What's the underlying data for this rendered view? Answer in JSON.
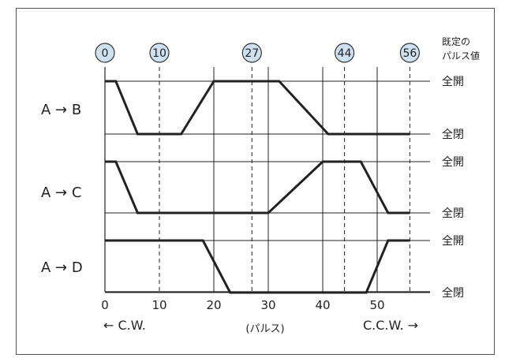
{
  "header_label": [
    "既定の",
    "パルス値"
  ],
  "markers": [
    {
      "value": 0,
      "label": "0"
    },
    {
      "value": 10,
      "label": "10"
    },
    {
      "value": 27,
      "label": "27"
    },
    {
      "value": 44,
      "label": "44"
    },
    {
      "value": 56,
      "label": "56"
    }
  ],
  "x_axis": {
    "ticks": [
      0,
      10,
      20,
      30,
      40,
      50
    ],
    "tick_labels": [
      "0",
      "10",
      "20",
      "30",
      "40",
      "50"
    ],
    "range": [
      0,
      56
    ],
    "unit_label": "(パルス)",
    "left_direction": "← C.W.",
    "right_direction": "C.C.W. →"
  },
  "solid_gridlines_x": [
    20,
    30,
    40,
    50
  ],
  "state_labels": {
    "open": "全開",
    "closed": "全閉"
  },
  "channels": [
    {
      "label": "A → B",
      "points": [
        [
          0,
          "open"
        ],
        [
          2,
          "open"
        ],
        [
          6,
          "closed"
        ],
        [
          14,
          "closed"
        ],
        [
          20,
          "open"
        ],
        [
          32,
          "open"
        ],
        [
          41,
          "closed"
        ],
        [
          56,
          "closed"
        ]
      ]
    },
    {
      "label": "A → C",
      "points": [
        [
          0,
          "open"
        ],
        [
          2,
          "open"
        ],
        [
          6,
          "closed"
        ],
        [
          30,
          "closed"
        ],
        [
          40,
          "open"
        ],
        [
          47,
          "open"
        ],
        [
          52,
          "closed"
        ],
        [
          56,
          "closed"
        ]
      ]
    },
    {
      "label": "A → D",
      "points": [
        [
          0,
          "open"
        ],
        [
          18,
          "open"
        ],
        [
          23,
          "closed"
        ],
        [
          48,
          "closed"
        ],
        [
          52,
          "open"
        ],
        [
          56,
          "open"
        ]
      ]
    }
  ],
  "colors": {
    "line": "#222222",
    "marker_fill": "#cfe0f0",
    "marker_stroke": "#333333",
    "frame": "#555555"
  }
}
